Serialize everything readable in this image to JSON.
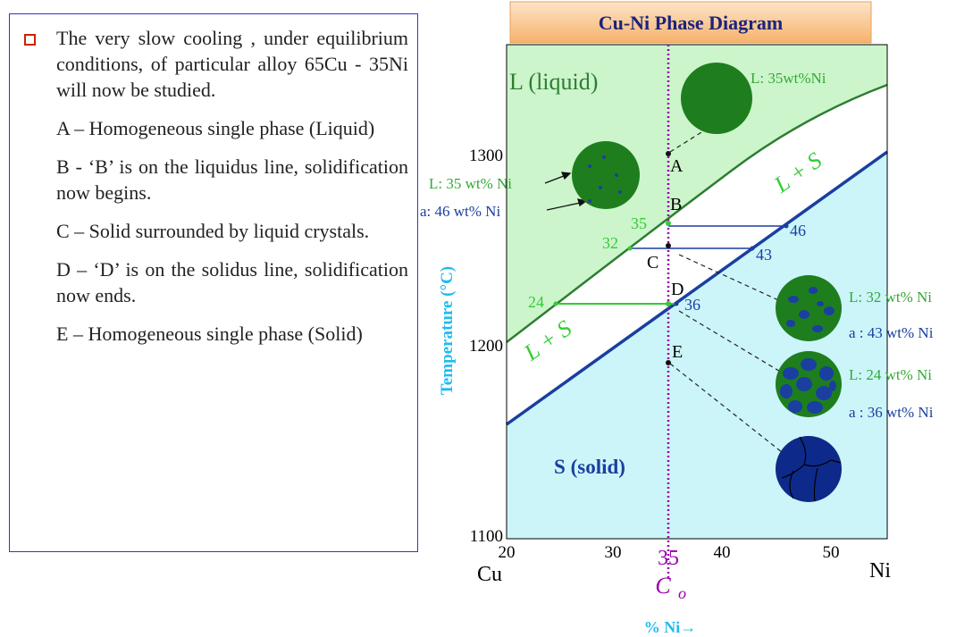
{
  "slide": {
    "bullets": [
      "The very slow cooling , under equilibrium conditions, of particular alloy 65Cu - 35Ni will now be studied.",
      "A – Homogeneous single phase (Liquid)",
      "B - ‘B’ is on the liquidus line, solidification now begins.",
      "C – Solid surrounded by liquid crystals.",
      "D – ‘D’ is on the solidus line, solidification now ends.",
      "E – Homogeneous single phase (Solid)"
    ]
  },
  "diagram": {
    "title": "Cu-Ni Phase Diagram",
    "y_axis_label": "Temperature (°C)",
    "x_axis_label": "% Ni→",
    "x_left_label": "Cu",
    "x_right_label": "Ni",
    "xticks": [
      20,
      30,
      40,
      50
    ],
    "yticks": [
      1300,
      1200,
      1100
    ],
    "composition": {
      "value": "35",
      "symbol": "C",
      "subscript": "o"
    },
    "regions": {
      "liquid": "L (liquid)",
      "liquid_solid_upper": "L + S",
      "liquid_solid_lower": "L + S",
      "solid": "S (solid)"
    },
    "points": [
      "A",
      "B",
      "C",
      "D",
      "E"
    ],
    "tie_line_labels": [
      "35",
      "46",
      "32",
      "43",
      "24",
      "36"
    ],
    "microstructure_labels": [
      "L: 35wt%Ni",
      "L: 35 wt% Ni",
      "a: 46 wt% Ni",
      "L: 32 wt% Ni",
      "a : 43 wt% Ni",
      "L: 24 wt% Ni",
      "a : 36 wt% Ni"
    ]
  }
}
